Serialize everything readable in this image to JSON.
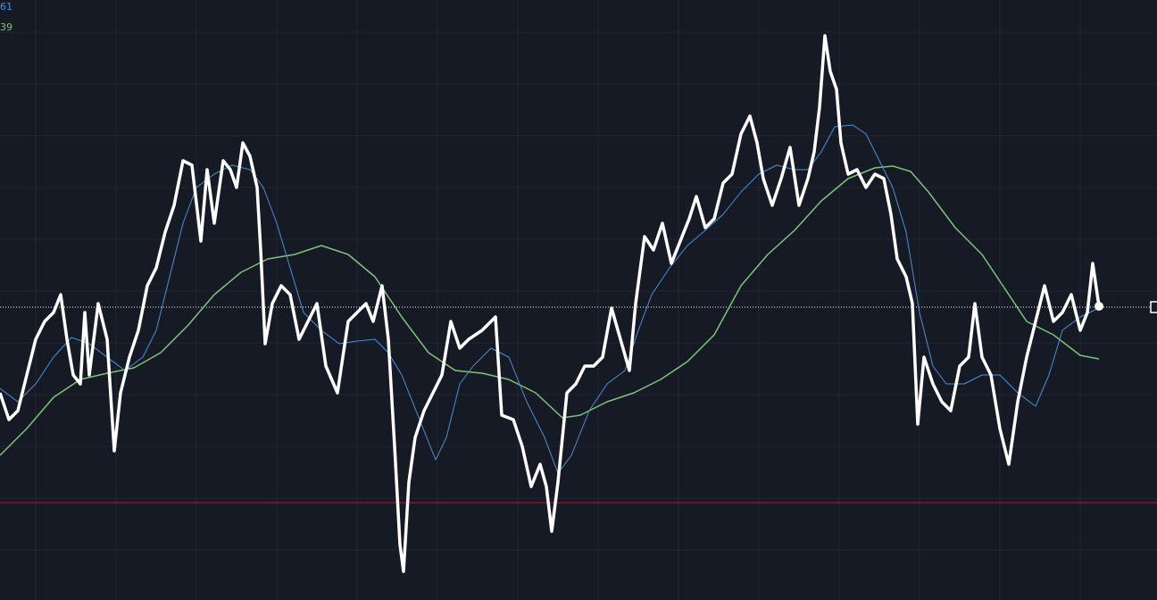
{
  "chart_data": {
    "type": "line",
    "xlim": [
      0,
      1296
    ],
    "ylim": [
      0,
      672
    ],
    "xticks": [
      40,
      130,
      220,
      310,
      400,
      490,
      580,
      670,
      760,
      850,
      940,
      1030,
      1120,
      1210
    ],
    "yticks": [
      56,
      114,
      172,
      230,
      288,
      346,
      404,
      462,
      520,
      578,
      636
    ],
    "grid": true,
    "background": "#161a25",
    "reference_lines": [
      {
        "value": 328,
        "color": "#ffffff",
        "style": "dotted"
      },
      {
        "value": 109,
        "color": "#c8102e",
        "style": "solid"
      }
    ],
    "series": [
      {
        "color": "#ffffff",
        "width": 3.5,
        "end_marker": true,
        "x": [
          0,
          10,
          20,
          30,
          40,
          50,
          60,
          68,
          75,
          82,
          90,
          95,
          100,
          110,
          120,
          128,
          135,
          145,
          155,
          165,
          175,
          185,
          195,
          205,
          215,
          225,
          232,
          240,
          250,
          258,
          265,
          272,
          280,
          288,
          292,
          297,
          305,
          315,
          325,
          335,
          345,
          355,
          365,
          378,
          390,
          400,
          410,
          418,
          428,
          435,
          442,
          448,
          452,
          458,
          465,
          475,
          485,
          495,
          505,
          515,
          525,
          540,
          555,
          562,
          575,
          585,
          595,
          605,
          612,
          618,
          625,
          635,
          645,
          655,
          665,
          675,
          685,
          695,
          705,
          712,
          722,
          732,
          742,
          752,
          762,
          772,
          780,
          790,
          800,
          810,
          820,
          830,
          840,
          848,
          855,
          865,
          875,
          885,
          895,
          905,
          912,
          918,
          924,
          930,
          937,
          942,
          950,
          960,
          970,
          980,
          990,
          998,
          1005,
          1015,
          1022,
          1028,
          1035,
          1045,
          1055,
          1065,
          1075,
          1085,
          1092,
          1100,
          1110,
          1120,
          1130,
          1140,
          1150,
          1160,
          1170,
          1180,
          1190,
          1200,
          1210,
          1218,
          1224,
          1231
        ],
        "values": [
          232,
          202,
          212,
          252,
          292,
          312,
          322,
          342,
          292,
          252,
          242,
          322,
          252,
          332,
          292,
          167,
          232,
          272,
          302,
          352,
          372,
          412,
          442,
          492,
          487,
          402,
          482,
          422,
          492,
          482,
          462,
          512,
          497,
          462,
          392,
          287,
          332,
          352,
          342,
          292,
          312,
          332,
          262,
          232,
          312,
          322,
          332,
          312,
          352,
          292,
          172,
          62,
          32,
          132,
          182,
          212,
          232,
          252,
          312,
          282,
          292,
          302,
          317,
          207,
          202,
          172,
          127,
          152,
          127,
          77,
          132,
          232,
          242,
          262,
          262,
          272,
          327,
          292,
          257,
          332,
          407,
          392,
          422,
          377,
          402,
          427,
          452,
          417,
          427,
          467,
          477,
          522,
          542,
          512,
          472,
          442,
          472,
          507,
          442,
          472,
          502,
          552,
          632,
          592,
          572,
          512,
          477,
          482,
          462,
          477,
          472,
          432,
          382,
          362,
          332,
          197,
          272,
          242,
          222,
          212,
          262,
          272,
          332,
          272,
          252,
          192,
          152,
          222,
          272,
          312,
          352,
          312,
          322,
          342,
          302,
          322,
          377,
          329
        ]
      },
      {
        "name": "61",
        "color": "#4a90d9",
        "width": 1,
        "x": [
          0,
          20,
          40,
          60,
          80,
          100,
          120,
          140,
          160,
          175,
          190,
          205,
          220,
          240,
          260,
          280,
          295,
          310,
          325,
          340,
          360,
          380,
          400,
          420,
          435,
          450,
          470,
          488,
          500,
          515,
          530,
          550,
          570,
          590,
          610,
          625,
          640,
          660,
          680,
          700,
          715,
          730,
          750,
          770,
          790,
          810,
          830,
          850,
          870,
          890,
          905,
          920,
          935,
          955,
          970,
          985,
          1000,
          1015,
          1030,
          1045,
          1060,
          1080,
          1100,
          1120,
          1140,
          1160,
          1175,
          1190,
          1210,
          1231
        ],
        "values": [
          237,
          222,
          242,
          272,
          294,
          287,
          272,
          257,
          272,
          302,
          362,
          422,
          462,
          477,
          487,
          482,
          462,
          422,
          372,
          322,
          302,
          287,
          290,
          292,
          277,
          252,
          202,
          157,
          182,
          242,
          262,
          282,
          272,
          222,
          182,
          142,
          162,
          212,
          242,
          257,
          302,
          342,
          372,
          397,
          414,
          432,
          457,
          477,
          487,
          482,
          482,
          502,
          530,
          532,
          522,
          492,
          462,
          412,
          322,
          262,
          242,
          242,
          252,
          252,
          232,
          217,
          252,
          302,
          317,
          327
        ]
      },
      {
        "name": "39",
        "color": "#7dc47a",
        "width": 1.5,
        "x": [
          0,
          30,
          60,
          90,
          120,
          150,
          180,
          210,
          240,
          270,
          300,
          330,
          360,
          390,
          420,
          450,
          480,
          510,
          540,
          570,
          600,
          630,
          650,
          680,
          710,
          740,
          770,
          800,
          830,
          860,
          890,
          920,
          950,
          980,
          1000,
          1020,
          1040,
          1070,
          1100,
          1130,
          1150,
          1180,
          1210,
          1231
        ],
        "values": [
          162,
          192,
          227,
          247,
          254,
          260,
          277,
          307,
          342,
          367,
          382,
          387,
          397,
          387,
          362,
          317,
          277,
          257,
          254,
          247,
          232,
          204,
          207,
          222,
          232,
          247,
          267,
          297,
          352,
          387,
          414,
          447,
          472,
          484,
          486,
          480,
          457,
          417,
          387,
          342,
          312,
          297,
          274,
          270
        ]
      }
    ]
  }
}
